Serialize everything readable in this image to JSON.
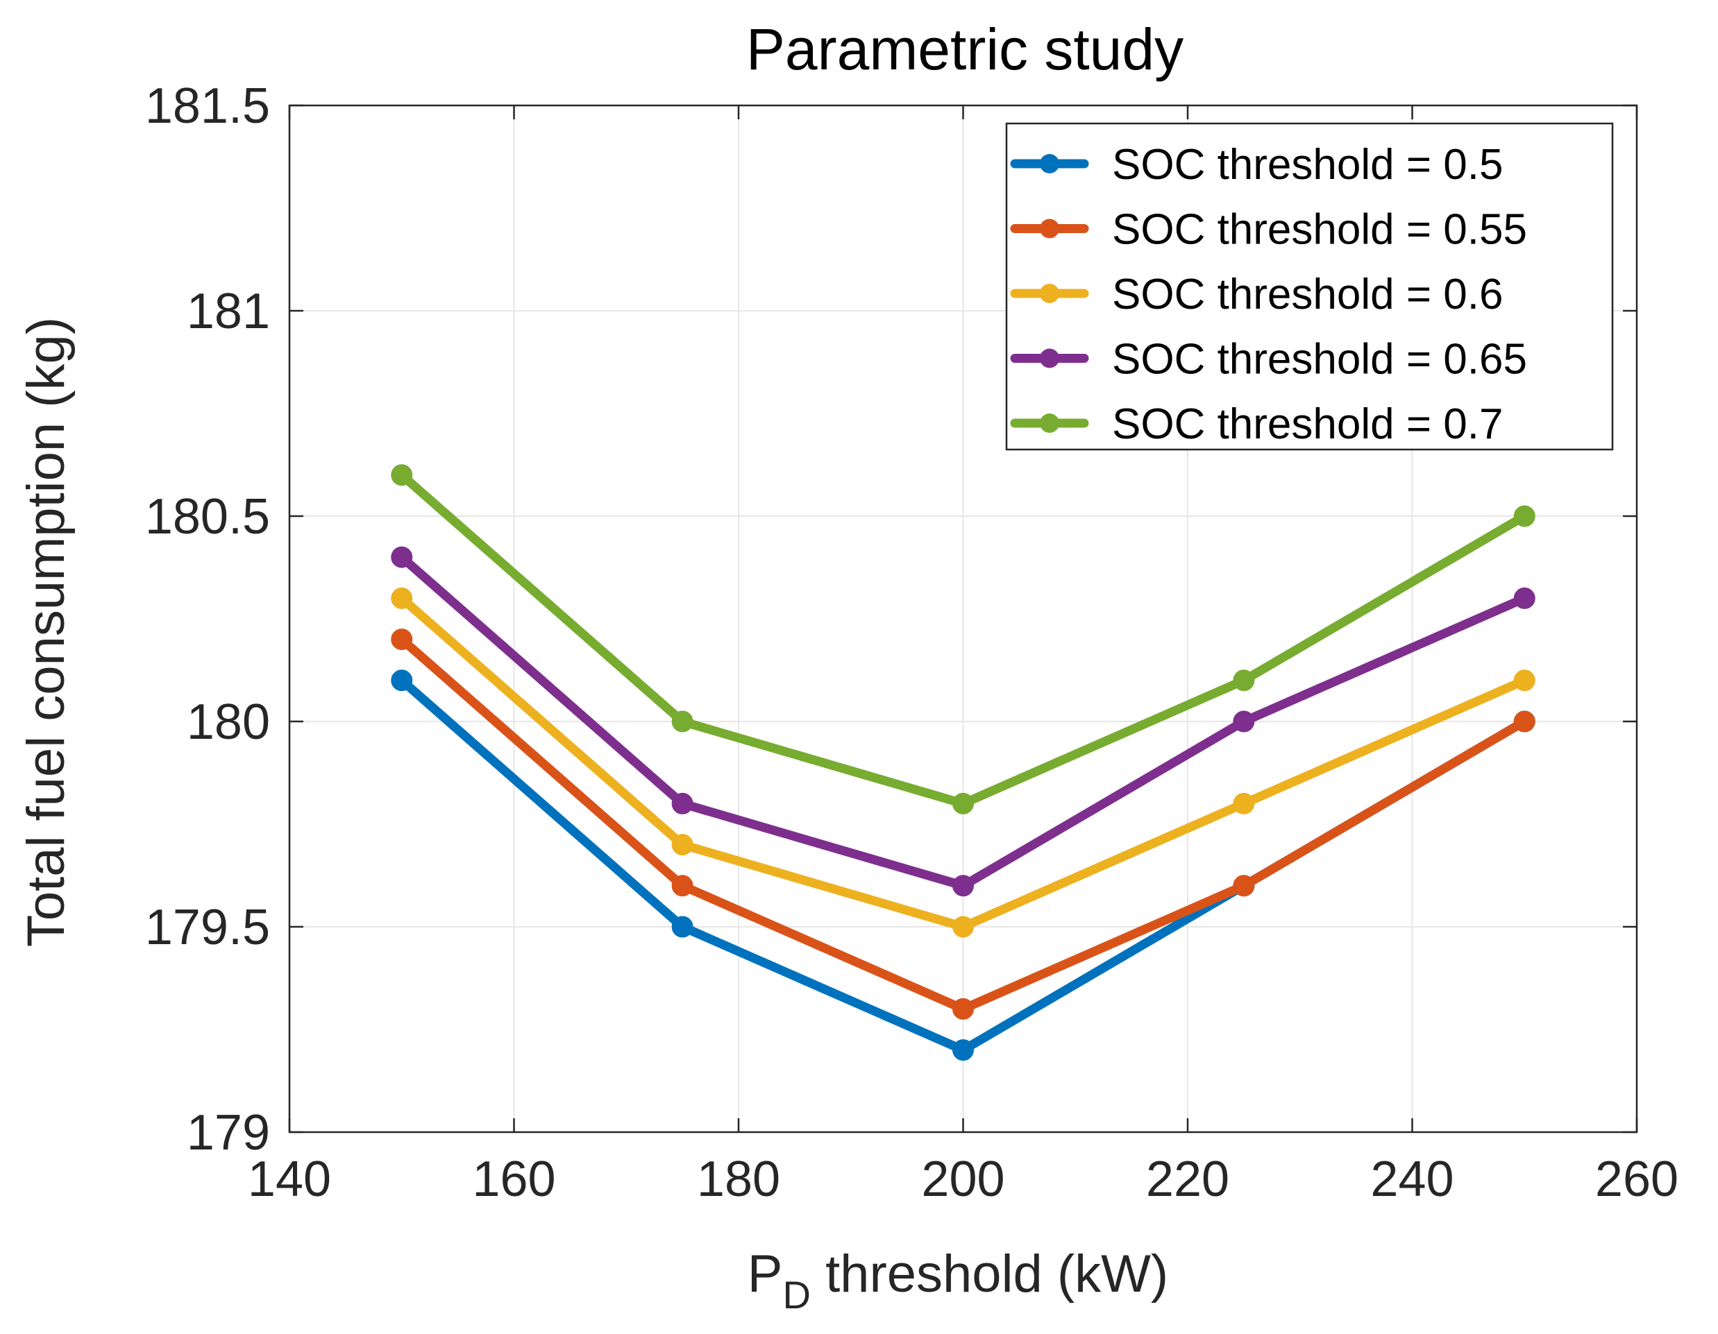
{
  "chart_data": {
    "type": "line",
    "title": "Parametric study",
    "xlabel_main": "P",
    "xlabel_sub": "D",
    "xlabel_rest": " threshold (kW)",
    "ylabel": "Total fuel consumption (kg)",
    "xlim": [
      140,
      260
    ],
    "ylim": [
      179,
      181.5
    ],
    "xticks": [
      140,
      160,
      180,
      200,
      220,
      240,
      260
    ],
    "xtick_labels": [
      "140",
      "160",
      "180",
      "200",
      "220",
      "240",
      "260"
    ],
    "yticks": [
      179,
      179.5,
      180,
      180.5,
      181,
      181.5
    ],
    "ytick_labels": [
      "179",
      "179.5",
      "180",
      "180.5",
      "181",
      "181.5"
    ],
    "grid": true,
    "legend_position": "top-right",
    "x": [
      150,
      175,
      200,
      225,
      250
    ],
    "series": [
      {
        "name": "SOC threshold = 0.5",
        "color": "#0072BD",
        "values": [
          180.1,
          179.5,
          179.2,
          179.6,
          180.0
        ]
      },
      {
        "name": "SOC threshold = 0.55",
        "color": "#D95319",
        "values": [
          180.2,
          179.6,
          179.3,
          179.6,
          180.0
        ]
      },
      {
        "name": "SOC threshold = 0.6",
        "color": "#EDB120",
        "values": [
          180.3,
          179.7,
          179.5,
          179.8,
          180.1
        ]
      },
      {
        "name": "SOC threshold = 0.65",
        "color": "#7E2F8E",
        "values": [
          180.4,
          179.8,
          179.6,
          180.0,
          180.3
        ]
      },
      {
        "name": "SOC threshold = 0.7",
        "color": "#77AC30",
        "values": [
          180.6,
          180.0,
          179.8,
          180.1,
          180.5
        ]
      }
    ]
  }
}
